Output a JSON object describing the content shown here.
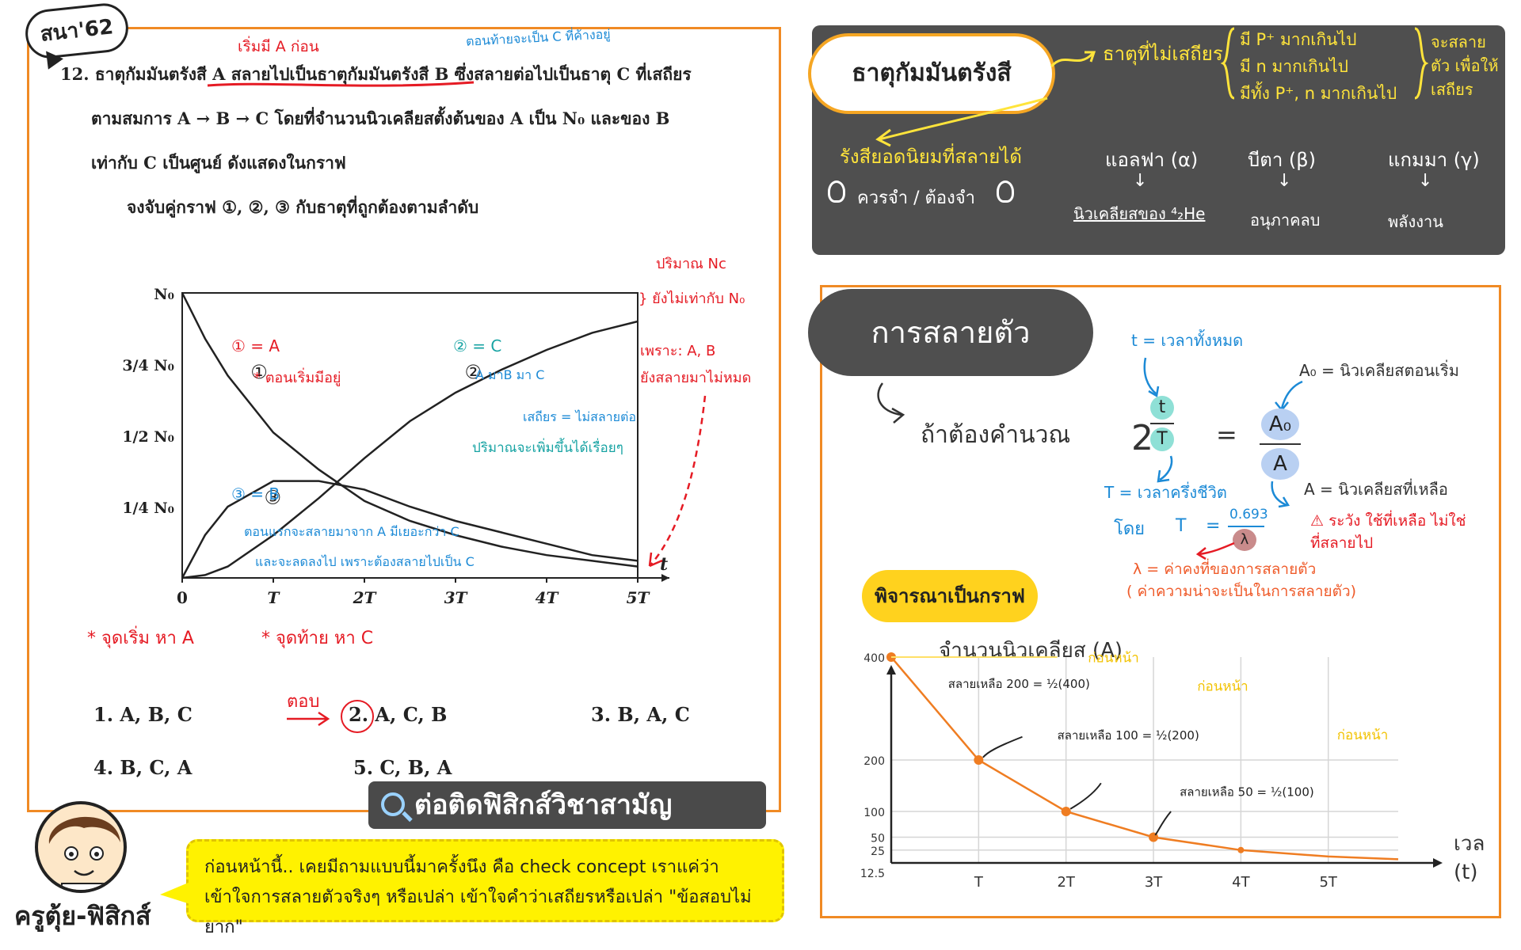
{
  "left": {
    "tag": "สนา'62",
    "question": {
      "line1": "12. ธาตุกัมมันตรังสี A สลายไปเป็นธาตุกัมมันตรังสี B ซึ่งสลายต่อไปเป็นธาตุ C ที่เสถียร",
      "line2": "ตามสมการ A → B → C โดยที่จำนวนนิวเคลียสตั้งต้นของ A เป็น N₀ และของ B",
      "line3": "เท่ากับ C เป็นศูนย์ ดังแสดงในกราฟ",
      "line4": "จงจับคู่กราฟ ①, ②, ③ กับธาตุที่ถูกต้องตามลำดับ"
    },
    "notes": {
      "start_a": "เริ่มมี A ก่อน",
      "end_c": "ตอนท้ายจะเป็น C ที่ค้างอยู่",
      "nc_amount": "ปริมาณ Nc",
      "not_equal": "} ยังไม่เท่ากับ N₀",
      "because": "เพราะ: A, B",
      "still_decay": "ยังสลายมาไม่หมด",
      "curve1": "① = A",
      "curve1_note": "* ตอนเริ่มมีอยู่",
      "curve2": "② = C",
      "curve2_note1": "A มาB มา C",
      "curve2_note2": "เสถียร = ไม่สลายต่อ",
      "curve2_note3": "ปริมาณจะเพิ่มขึ้นได้เรื่อยๆ",
      "curve3": "③ = B",
      "curve3_note1": "ตอนแรกจะสลายมาจาก A มีเยอะกว่า C",
      "curve3_note2": "และจะลดลงไป เพราะต้องสลายไปเป็น C",
      "start_point": "* จุดเริ่ม หา A",
      "end_point": "* จุดท้าย หา C",
      "answer": "ตอบ"
    },
    "options": [
      "1.  A, B, C",
      "2.  A, C, B",
      "3.  B, A, C",
      "4.  B, C, A",
      "5.  C, B, A"
    ],
    "banner": "ต่อติดฟิสิกส์วิชาสามัญ",
    "teacher": "ครูตุ้ย-ฟิสิกส์",
    "bubble_line1": "ก่อนหน้านี้.. เคยมีถามแบบนี้มาครั้งนึง  คือ check concept เราแค่ว่า",
    "bubble_line2": "เข้าใจการสลายตัวจริงๆ หรือเปล่า  เข้าใจคำว่าเสถียรหรือเปล่า \"ข้อสอบไม่ยาก\""
  },
  "chart_data": {
    "type": "line",
    "x_ticks": [
      "0",
      "T",
      "2T",
      "3T",
      "4T",
      "5T"
    ],
    "x_axis_label": "t",
    "y_ticks": [
      "N₀",
      "3/4 N₀",
      "1/2 N₀",
      "1/4 N₀"
    ],
    "ylim": [
      0,
      1
    ],
    "xlim": [
      0,
      5
    ],
    "series": [
      {
        "name": "①",
        "x": [
          0,
          0.25,
          0.5,
          1,
          1.5,
          2,
          2.5,
          3,
          3.5,
          4,
          4.5,
          5
        ],
        "values": [
          1.0,
          0.84,
          0.71,
          0.51,
          0.38,
          0.27,
          0.2,
          0.15,
          0.11,
          0.08,
          0.06,
          0.04
        ]
      },
      {
        "name": "②",
        "x": [
          0,
          0.25,
          0.5,
          1,
          1.5,
          2,
          2.5,
          3,
          3.5,
          4,
          4.5,
          5
        ],
        "values": [
          0.0,
          0.01,
          0.04,
          0.15,
          0.28,
          0.42,
          0.55,
          0.65,
          0.73,
          0.8,
          0.86,
          0.9
        ]
      },
      {
        "name": "③",
        "x": [
          0,
          0.25,
          0.5,
          1,
          1.5,
          2,
          2.5,
          3,
          3.5,
          4,
          4.5,
          5
        ],
        "values": [
          0.0,
          0.15,
          0.25,
          0.34,
          0.34,
          0.31,
          0.25,
          0.2,
          0.16,
          0.12,
          0.08,
          0.06
        ]
      }
    ]
  },
  "dark": {
    "title": "ธาตุกัมมันตรังสี",
    "unstable": "ธาตุที่ไม่เสถียร",
    "reason1": "มี P⁺ มากเกินไป",
    "reason2": "มี n มากเกินไป",
    "reason3": "มีทั้ง P⁺, n มากเกินไป",
    "result": "จะสลายตัว เพื่อให้ เสถียร",
    "rays": "รังสียอดนิยมที่สลายได้",
    "remember": "ควรจำ / ต้องจำ",
    "alpha": "แอลฟา (α)",
    "alpha_val": "นิวเคลียสของ ⁴₂He",
    "beta": "บีตา (β)",
    "beta_val": "อนุภาคลบ",
    "gamma": "แกมมา (γ)",
    "gamma_val": "พลังงาน"
  },
  "decay": {
    "title": "การสลายตัว",
    "calc": "ถ้าต้องคำนวณ",
    "t_label": "t = เวลาทั้งหมด",
    "a0_label": "A₀ = นิวเคลียสตอนเริ่ม",
    "eq_base": "2",
    "eq_t": "t",
    "eq_T": "T",
    "eq_equal": "=",
    "eq_a0": "A₀",
    "eq_a": "A",
    "T_label": "T = เวลาครึ่งชีวิต",
    "a_label": "A = นิวเคลียสที่เหลือ",
    "by": "โดย",
    "T_sym": "T",
    "half_num": "0.693",
    "half_den": "λ",
    "warning": "⚠ ระวัง ใช้ที่เหลือ ไม่ใช่ที่สลายไป",
    "lambda_label": "λ = ค่าคงที่ของการสลายตัว",
    "lambda_note": "( ค่าความน่าจะเป็นในการสลายตัว)",
    "graph_badge": "พิจารณาเป็นกราฟ"
  },
  "decay_chart": {
    "type": "line",
    "ylabel": "จำนวนนิวเคลียส (A)",
    "xlabel1": "เวลา",
    "xlabel2": "(t)",
    "x_ticks": [
      "T",
      "2T",
      "3T",
      "4T",
      "5T"
    ],
    "y_ticks": [
      "400",
      "200",
      "100",
      "50",
      "25",
      "12.5"
    ],
    "xlim": [
      0,
      5.8
    ],
    "ylim": [
      0,
      400
    ],
    "series": [
      {
        "x": [
          0,
          1,
          2,
          3,
          4,
          5,
          5.8
        ],
        "values": [
          400,
          200,
          100,
          50,
          25,
          12.5,
          7
        ]
      }
    ],
    "ann1": "สลายเหลือ 200 = ½(400)",
    "ann2": "สลายเหลือ 100 = ½(200)",
    "ann3": "สลายเหลือ 50 = ½(100)",
    "before": "ก่อนหน้า",
    "line_color": "#ef7d22"
  }
}
